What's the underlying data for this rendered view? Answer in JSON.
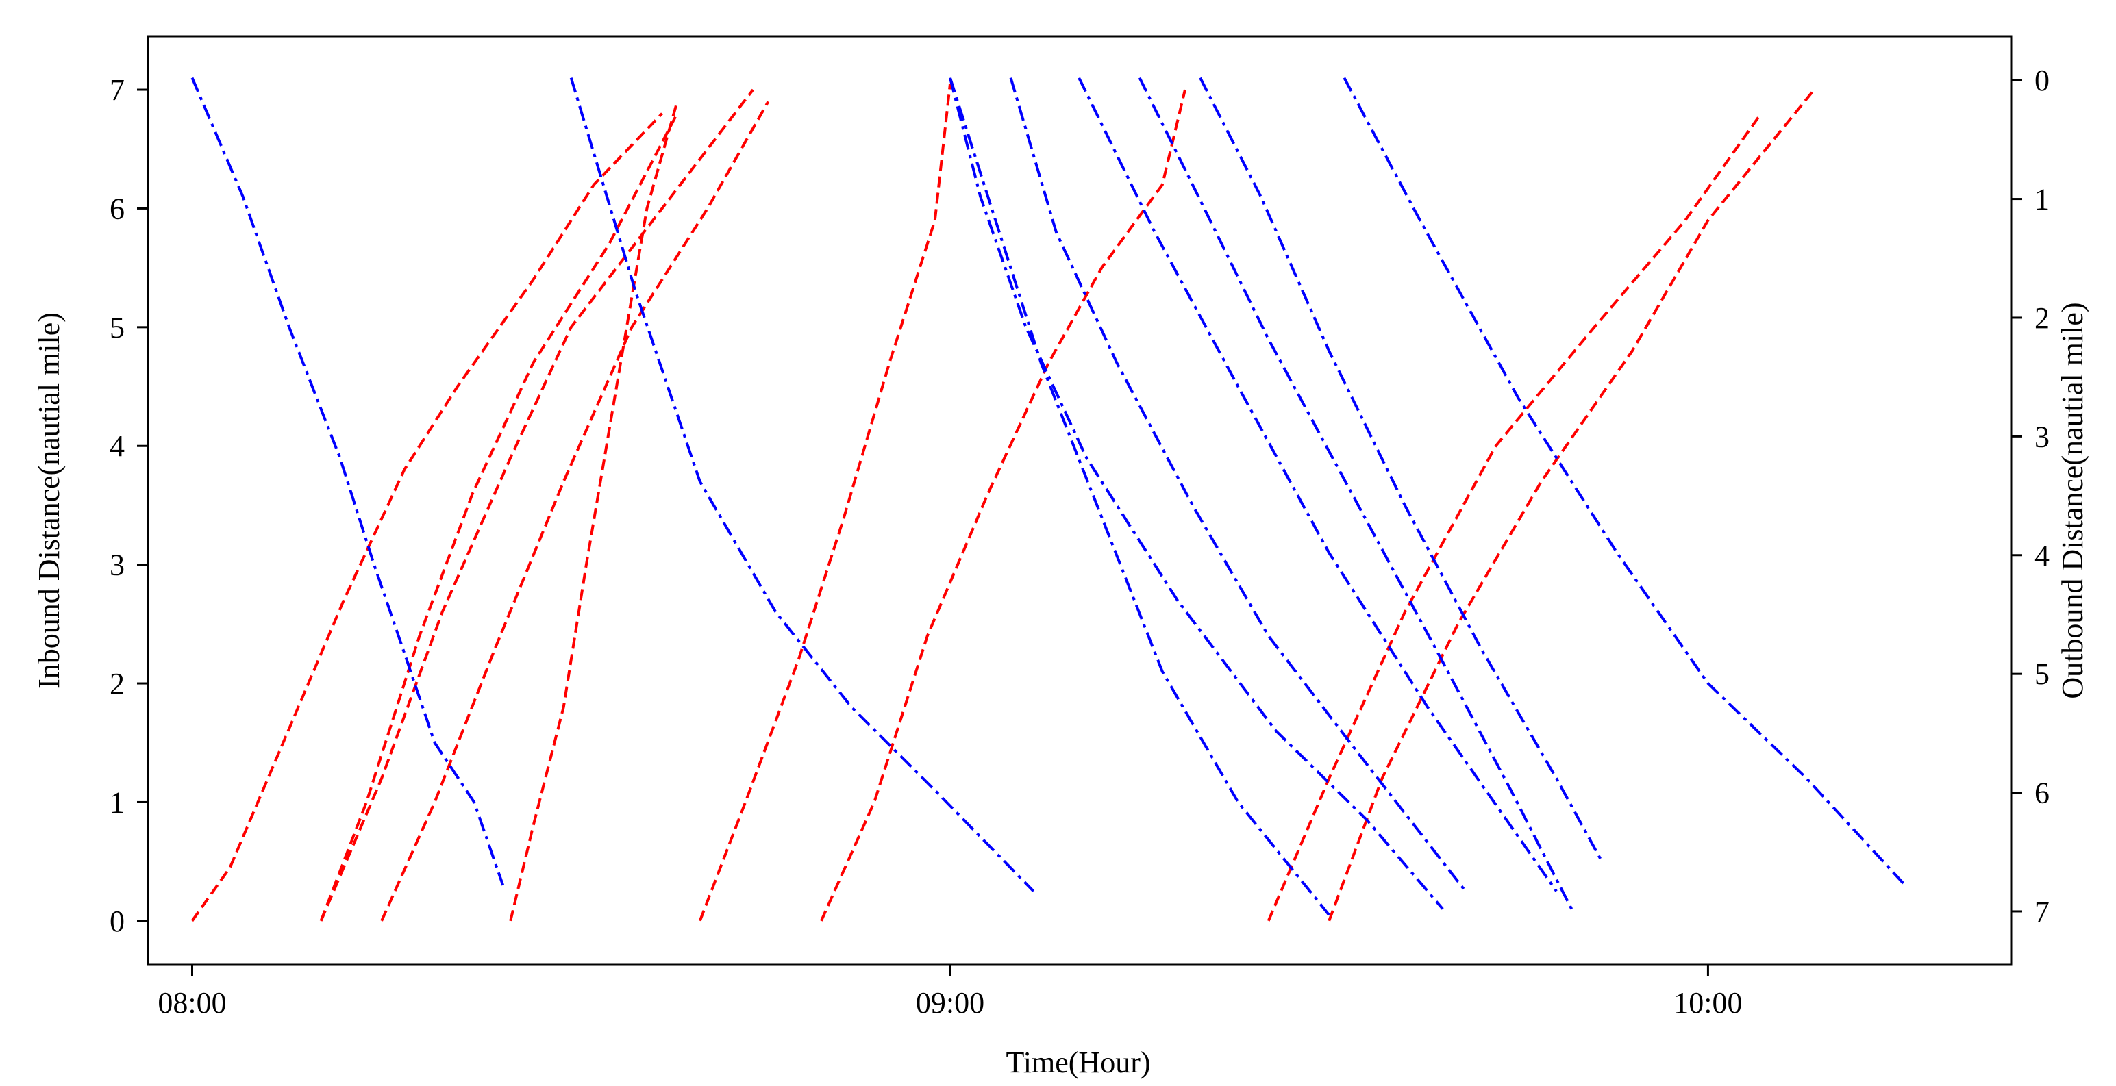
{
  "chart_data": {
    "type": "line",
    "x_axis": {
      "label": "Time(Hour)",
      "range": [
        -0.0583,
        2.4
      ],
      "ticks": [
        {
          "value": 0,
          "label": "08:00"
        },
        {
          "value": 1,
          "label": "09:00"
        },
        {
          "value": 2,
          "label": "10:00"
        }
      ]
    },
    "y_axis_left": {
      "label": "Inbound Distance(nautial mile)",
      "range": [
        -0.37,
        7.45
      ],
      "ticks": [
        0,
        1,
        2,
        3,
        4,
        5,
        6,
        7
      ]
    },
    "y_axis_right": {
      "label": "Outbound Distance(nautial mile)",
      "range": [
        7.45,
        -0.37
      ],
      "ticks": [
        0,
        1,
        2,
        3,
        4,
        5,
        6,
        7
      ]
    },
    "colors": {
      "inbound": "#0000ff",
      "outbound": "#ff0000"
    },
    "inbound_series": [
      {
        "points": [
          [
            0.0,
            7.1
          ],
          [
            0.067,
            6.1
          ],
          [
            0.128,
            5.0
          ],
          [
            0.195,
            3.9
          ],
          [
            0.24,
            3.0
          ],
          [
            0.283,
            2.2
          ],
          [
            0.32,
            1.5
          ],
          [
            0.372,
            1.0
          ],
          [
            0.41,
            0.3
          ]
        ]
      },
      {
        "points": [
          [
            0.5,
            7.1
          ],
          [
            0.585,
            5.3
          ],
          [
            0.67,
            3.7
          ],
          [
            0.77,
            2.6
          ],
          [
            0.87,
            1.8
          ],
          [
            0.98,
            1.1
          ],
          [
            1.11,
            0.25
          ]
        ]
      },
      {
        "points": [
          [
            1.0,
            7.1
          ],
          [
            1.04,
            6.1
          ],
          [
            1.1,
            5.0
          ],
          [
            1.18,
            3.9
          ],
          [
            1.3,
            2.7
          ],
          [
            1.43,
            1.6
          ],
          [
            1.55,
            0.85
          ],
          [
            1.65,
            0.1
          ]
        ]
      },
      {
        "points": [
          [
            1.0,
            7.1
          ],
          [
            1.06,
            5.9
          ],
          [
            1.12,
            4.7
          ],
          [
            1.2,
            3.4
          ],
          [
            1.28,
            2.1
          ],
          [
            1.38,
            1.0
          ],
          [
            1.5,
            0.05
          ]
        ]
      },
      {
        "points": [
          [
            1.08,
            7.1
          ],
          [
            1.14,
            5.8
          ],
          [
            1.22,
            4.7
          ],
          [
            1.32,
            3.5
          ],
          [
            1.42,
            2.4
          ],
          [
            1.54,
            1.4
          ],
          [
            1.68,
            0.25
          ]
        ]
      },
      {
        "points": [
          [
            1.17,
            7.1
          ],
          [
            1.27,
            5.8
          ],
          [
            1.38,
            4.5
          ],
          [
            1.5,
            3.1
          ],
          [
            1.63,
            1.8
          ],
          [
            1.8,
            0.25
          ]
        ]
      },
      {
        "points": [
          [
            1.25,
            7.1
          ],
          [
            1.32,
            6.2
          ],
          [
            1.42,
            4.9
          ],
          [
            1.53,
            3.6
          ],
          [
            1.64,
            2.3
          ],
          [
            1.74,
            1.1
          ],
          [
            1.82,
            0.1
          ]
        ]
      },
      {
        "points": [
          [
            1.33,
            7.1
          ],
          [
            1.41,
            6.1
          ],
          [
            1.5,
            4.8
          ],
          [
            1.6,
            3.5
          ],
          [
            1.7,
            2.3
          ],
          [
            1.8,
            1.2
          ],
          [
            1.86,
            0.5
          ]
        ]
      },
      {
        "points": [
          [
            1.52,
            7.1
          ],
          [
            1.62,
            5.9
          ],
          [
            1.75,
            4.4
          ],
          [
            1.88,
            3.1
          ],
          [
            2.0,
            2.0
          ],
          [
            2.13,
            1.2
          ],
          [
            2.26,
            0.3
          ]
        ]
      }
    ],
    "outbound_series": [
      {
        "points": [
          [
            0.0,
            0.0
          ],
          [
            0.05,
            0.45
          ],
          [
            0.12,
            1.5
          ],
          [
            0.2,
            2.7
          ],
          [
            0.28,
            3.8
          ],
          [
            0.35,
            4.5
          ],
          [
            0.45,
            5.4
          ],
          [
            0.53,
            6.2
          ],
          [
            0.62,
            6.8
          ]
        ]
      },
      {
        "points": [
          [
            0.17,
            0.0
          ],
          [
            0.23,
            1.0
          ],
          [
            0.3,
            2.4
          ],
          [
            0.37,
            3.6
          ],
          [
            0.45,
            4.7
          ],
          [
            0.55,
            5.7
          ],
          [
            0.64,
            6.8
          ]
        ]
      },
      {
        "points": [
          [
            0.17,
            0.0
          ],
          [
            0.25,
            1.2
          ],
          [
            0.33,
            2.6
          ],
          [
            0.42,
            3.9
          ],
          [
            0.5,
            5.0
          ],
          [
            0.62,
            6.0
          ],
          [
            0.74,
            7.0
          ]
        ]
      },
      {
        "points": [
          [
            0.25,
            0.0
          ],
          [
            0.32,
            1.0
          ],
          [
            0.4,
            2.3
          ],
          [
            0.49,
            3.7
          ],
          [
            0.58,
            5.0
          ],
          [
            0.68,
            6.0
          ],
          [
            0.76,
            6.9
          ]
        ]
      },
      {
        "points": [
          [
            0.42,
            0.0
          ],
          [
            0.45,
            0.8
          ],
          [
            0.49,
            1.8
          ],
          [
            0.52,
            3.0
          ],
          [
            0.56,
            4.5
          ],
          [
            0.6,
            6.0
          ],
          [
            0.64,
            6.9
          ]
        ]
      },
      {
        "points": [
          [
            0.67,
            0.0
          ],
          [
            0.73,
            1.0
          ],
          [
            0.8,
            2.2
          ],
          [
            0.86,
            3.4
          ],
          [
            0.92,
            4.7
          ],
          [
            0.98,
            5.9
          ],
          [
            1.0,
            7.05
          ]
        ]
      },
      {
        "points": [
          [
            0.83,
            0.0
          ],
          [
            0.9,
            1.0
          ],
          [
            0.97,
            2.4
          ],
          [
            1.05,
            3.6
          ],
          [
            1.13,
            4.7
          ],
          [
            1.2,
            5.5
          ],
          [
            1.28,
            6.2
          ],
          [
            1.31,
            7.0
          ]
        ]
      },
      {
        "points": [
          [
            1.42,
            0.0
          ],
          [
            1.5,
            1.2
          ],
          [
            1.6,
            2.6
          ],
          [
            1.72,
            4.0
          ],
          [
            1.85,
            5.0
          ],
          [
            1.97,
            5.9
          ],
          [
            2.07,
            6.8
          ]
        ]
      },
      {
        "points": [
          [
            1.5,
            0.0
          ],
          [
            1.57,
            1.2
          ],
          [
            1.67,
            2.5
          ],
          [
            1.78,
            3.7
          ],
          [
            1.9,
            4.8
          ],
          [
            2.0,
            5.9
          ],
          [
            2.14,
            7.0
          ]
        ]
      }
    ]
  }
}
